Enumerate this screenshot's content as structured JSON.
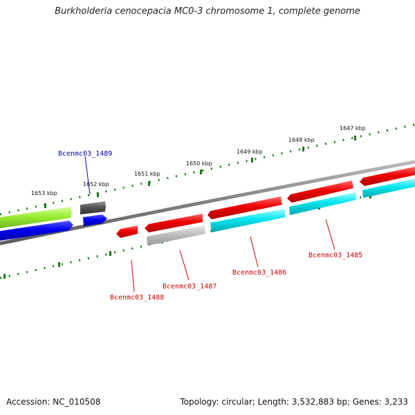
{
  "title": "Burkholderia cenocepacia MC0-3 chromosome 1, complete genome",
  "ticks": [
    {
      "label": "1647 kbp"
    },
    {
      "label": "1648 kbp"
    },
    {
      "label": "1649 kbp"
    },
    {
      "label": "1650 kbp"
    },
    {
      "label": "1651 kbp"
    },
    {
      "label": "1652 kbp"
    },
    {
      "label": "1653 kbp"
    }
  ],
  "genes": [
    {
      "label": "Bcenmc03_1489",
      "color": "#0000aa"
    },
    {
      "label": "Bcenmc03_1488",
      "color": "#cc0000"
    },
    {
      "label": "Bcenmc03_1487",
      "color": "#cc0000"
    },
    {
      "label": "Bcenmc03_1486",
      "color": "#cc0000"
    },
    {
      "label": "Bcenmc03_1485",
      "color": "#cc0000"
    }
  ],
  "colors": {
    "backbone": "#808080",
    "ticks": "#1a7a1a",
    "red_feature": "#ee0000",
    "cyan_feature": "#00e5ee",
    "blue_feature": "#0000ee",
    "green_feature": "#99ee33",
    "gray_feature": "#bdbdbd",
    "dark_feature": "#555555"
  },
  "footer": {
    "accession": "Accession: NC_010508",
    "topology": "Topology: circular; Length: 3,532,883 bp; Genes: 3,233"
  }
}
